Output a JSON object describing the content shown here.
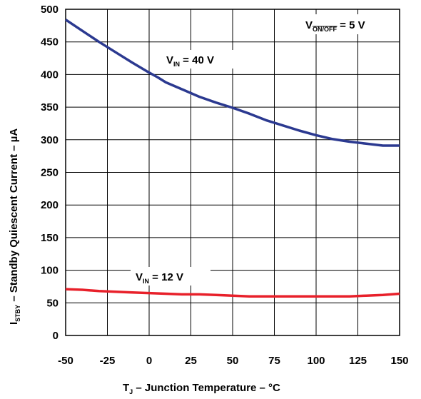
{
  "chart_data": {
    "type": "line",
    "xlabel": {
      "main": "T",
      "sub": "J",
      "rest": " – Junction Temperature – °C"
    },
    "ylabel": {
      "main": "I",
      "sub": "STBY",
      "rest": " – Standby Quiescent Current – µA"
    },
    "xlim": [
      -50,
      150
    ],
    "ylim": [
      0,
      500
    ],
    "xticks": [
      "-50",
      "-25",
      "0",
      "25",
      "50",
      "75",
      "100",
      "125",
      "150"
    ],
    "yticks": [
      "0",
      "50",
      "100",
      "150",
      "200",
      "250",
      "300",
      "350",
      "400",
      "450",
      "500"
    ],
    "grid": true,
    "condition": {
      "main": "V",
      "sub": "ON/OFF",
      "rest": " = 5 V"
    },
    "series": [
      {
        "name": {
          "main": "V",
          "sub": "IN",
          "rest": " = 40 V"
        },
        "color": "#2b3990",
        "x": [
          -50,
          -40,
          -30,
          -20,
          -10,
          0,
          5,
          10,
          20,
          30,
          40,
          50,
          60,
          70,
          80,
          90,
          100,
          110,
          120,
          130,
          140,
          150
        ],
        "y": [
          484,
          467,
          450,
          434,
          418,
          403,
          396,
          388,
          377,
          366,
          357,
          349,
          340,
          330,
          322,
          314,
          307,
          301,
          297,
          294,
          291,
          291
        ]
      },
      {
        "name": {
          "main": "V",
          "sub": "IN",
          "rest": " = 12 V"
        },
        "color": "#e8202a",
        "x": [
          -50,
          -40,
          -30,
          -20,
          -10,
          0,
          10,
          20,
          30,
          40,
          50,
          60,
          70,
          80,
          90,
          100,
          110,
          120,
          130,
          140,
          150
        ],
        "y": [
          71,
          70,
          68,
          67,
          66,
          65,
          64,
          63,
          63,
          62,
          61,
          60,
          60,
          60,
          60,
          60,
          60,
          60,
          61,
          62,
          64
        ]
      }
    ]
  },
  "colors": {
    "grid": "#000000",
    "frame": "#000000",
    "background": "#ffffff"
  }
}
